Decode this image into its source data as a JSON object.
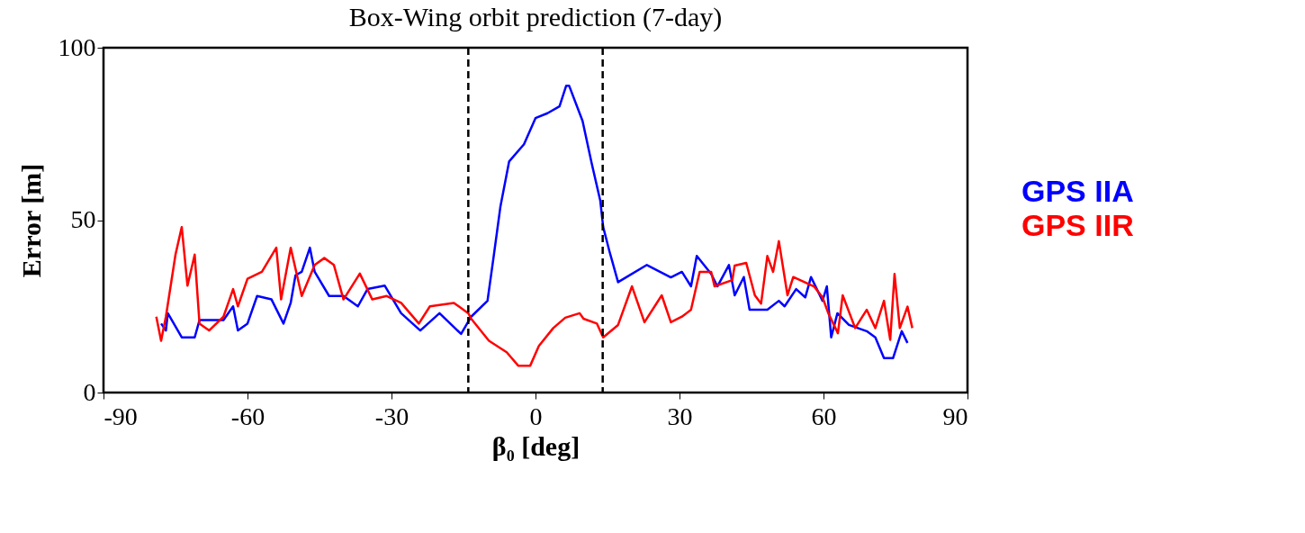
{
  "chart_data": {
    "type": "line",
    "title": "Box-Wing orbit prediction (7-day)",
    "xlabel": "β₀ [deg]",
    "ylabel": "Error [m]",
    "xlim": [
      -90,
      90
    ],
    "xticks": [
      -90,
      -60,
      -30,
      0,
      30,
      60,
      90
    ],
    "ylim": [
      0,
      100
    ],
    "yticks": [
      0,
      50,
      100
    ],
    "grid": false,
    "legend": "right",
    "line_style": "solid",
    "marker": "none",
    "ref_lines": [
      {
        "axis": "x",
        "value": -14,
        "color": "#000000",
        "line_style": "dashed"
      },
      {
        "axis": "x",
        "value": 14,
        "color": "#000000",
        "line_style": "dashed"
      }
    ],
    "series": [
      {
        "name": "GPS IIA",
        "color": "#0000ff",
        "x": [
          -78,
          -77,
          -76.6,
          -73.7,
          -71,
          -70,
          -65,
          -63,
          -62,
          -60,
          -58,
          -55,
          -52.5,
          -51,
          -50,
          -48.7,
          -47,
          -46,
          -43,
          -40,
          -37,
          -35,
          -31.4,
          -28,
          -24,
          -20,
          -15.5,
          -13.4,
          -10,
          -8.8,
          -7.3,
          -5.5,
          -2.4,
          0,
          2.5,
          5,
          6.4,
          7,
          9.8,
          11.7,
          13.5,
          14.1,
          15.4,
          16,
          17.2,
          19,
          23.2,
          28.2,
          30.5,
          32.4,
          33.6,
          36.6,
          37.9,
          40.3,
          41.5,
          43.4,
          44.6,
          48.3,
          50.7,
          51.9,
          54.3,
          56.2,
          57.4,
          59.8,
          60.7,
          61.6,
          62.9,
          65.3,
          69,
          70.8,
          72.6,
          74.5,
          76.3,
          77.5
        ],
        "values": [
          20,
          18,
          23,
          16,
          16,
          21,
          21,
          25,
          18,
          20,
          28,
          27,
          20,
          26,
          34,
          35,
          42,
          35,
          28,
          28,
          25,
          30,
          31,
          23,
          18,
          23,
          17,
          22,
          26.6,
          38.6,
          54,
          67,
          72,
          79.6,
          81,
          83,
          89,
          89,
          78.8,
          66.5,
          55.6,
          48,
          41,
          38,
          32,
          33.5,
          37,
          33.4,
          35,
          30.8,
          39.6,
          34.4,
          30.8,
          37,
          28.2,
          33.5,
          24,
          24,
          26.6,
          25,
          30,
          27.6,
          33.5,
          26.6,
          30.8,
          16,
          23,
          19.6,
          17.8,
          16,
          10,
          10,
          17.8,
          14.4
        ]
      },
      {
        "name": "GPS IIR",
        "color": "#ff0000",
        "x": [
          -79,
          -78,
          -77,
          -75,
          -73.7,
          -72.5,
          -71,
          -70,
          -68,
          -65,
          -63,
          -62,
          -60,
          -57,
          -54,
          -53,
          -51,
          -48.7,
          -46,
          -44,
          -42,
          -40,
          -36.6,
          -34,
          -31,
          -28,
          -24.3,
          -22,
          -17,
          -14,
          -13.4,
          -9.7,
          -6,
          -3.6,
          -1.1,
          0.7,
          3.7,
          6.2,
          9.2,
          10,
          12.8,
          14.1,
          17.2,
          20.1,
          22.7,
          26.3,
          28.2,
          30.5,
          32.4,
          34.2,
          36.6,
          37.3,
          41,
          41.5,
          43.9,
          45.7,
          47,
          48.3,
          49.5,
          50.7,
          52.5,
          53.7,
          58,
          59.8,
          61,
          63,
          64,
          66.6,
          69,
          70.8,
          72.6,
          73.9,
          74.8,
          75.9,
          77.5,
          78.5
        ],
        "values": [
          22,
          15,
          22,
          40,
          48,
          31,
          40,
          20,
          18,
          22,
          30,
          25,
          33,
          35,
          42,
          27,
          42,
          28,
          37,
          39,
          37,
          27,
          34.5,
          27,
          28,
          26,
          20,
          25,
          26,
          23,
          21.4,
          15,
          11.7,
          7.8,
          7.8,
          13.5,
          18.7,
          21.7,
          23,
          21.4,
          20,
          16,
          19.6,
          30.8,
          20.4,
          28.2,
          20.4,
          22,
          24,
          35,
          35,
          30.8,
          32.6,
          36.8,
          37.6,
          28.2,
          25.8,
          39.6,
          35,
          43.9,
          28.2,
          33.5,
          30.8,
          27.6,
          23,
          17.2,
          28.2,
          18.7,
          24,
          18.7,
          26.6,
          15.3,
          34.4,
          18.7,
          24.9,
          18.7
        ]
      }
    ]
  }
}
